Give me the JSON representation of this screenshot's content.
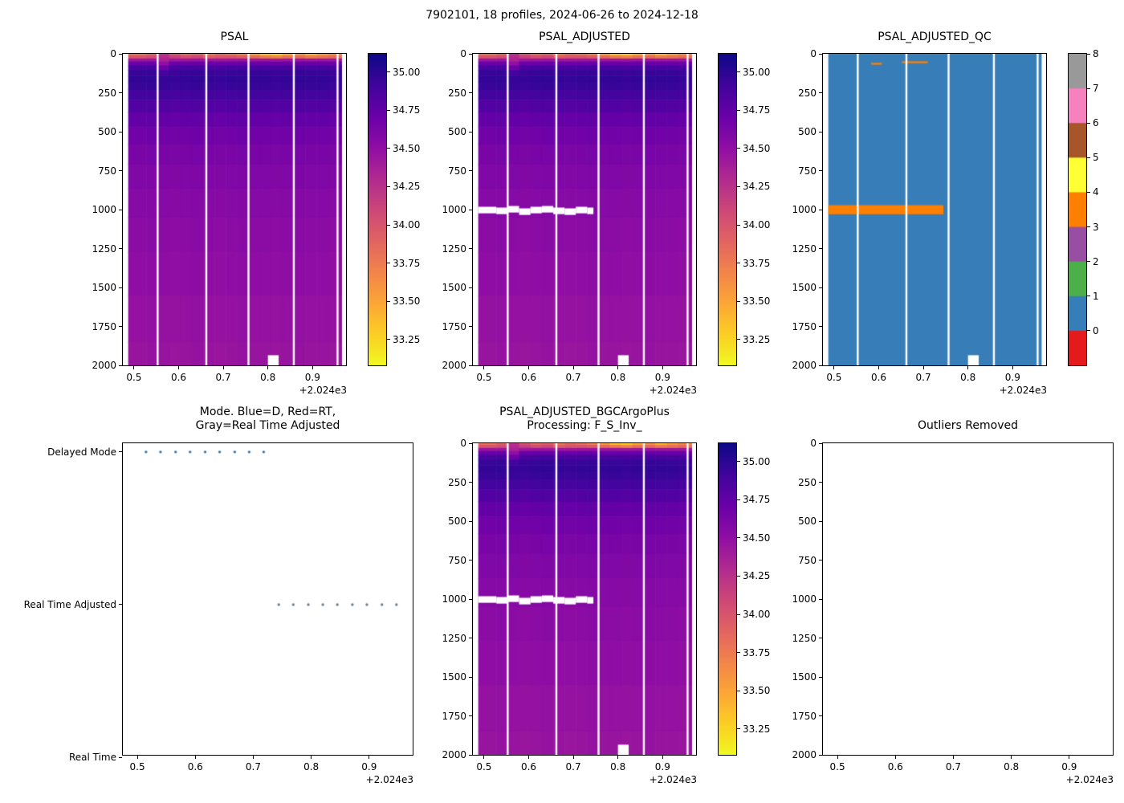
{
  "figure_title": "7902101, 18 profiles, 2024-06-26 to 2024-12-18",
  "axis": {
    "x_tick_labels": [
      "0.5",
      "0.6",
      "0.7",
      "0.8",
      "0.9"
    ],
    "x_tick_values": [
      0.5,
      0.6,
      0.7,
      0.8,
      0.9
    ],
    "x_min": 0.475,
    "x_max": 0.975,
    "x_offset_text": "+2.024e3",
    "y_tick_labels": [
      "0",
      "250",
      "500",
      "750",
      "1000",
      "1250",
      "1500",
      "1750",
      "2000"
    ],
    "y_tick_values": [
      0,
      250,
      500,
      750,
      1000,
      1250,
      1500,
      1750,
      2000
    ],
    "y_min": 0,
    "y_max": 2000
  },
  "salinity_colorbar": {
    "tick_labels": [
      "35.00",
      "34.75",
      "34.50",
      "34.25",
      "34.00",
      "33.75",
      "33.50",
      "33.25"
    ],
    "tick_values": [
      35.0,
      34.75,
      34.5,
      34.25,
      34.0,
      33.75,
      33.5,
      33.25
    ],
    "vmin": 33.08,
    "vmax": 35.12,
    "colormap": "plasma_r"
  },
  "qc_colorbar": {
    "tick_labels": [
      "0",
      "1",
      "2",
      "3",
      "4",
      "5",
      "6",
      "7",
      "8"
    ],
    "colors": [
      "#e41a1c",
      "#377eb8",
      "#4daf4a",
      "#984ea3",
      "#ff7f00",
      "#ffff33",
      "#a65628",
      "#f781bf",
      "#999999"
    ]
  },
  "chart_data": [
    {
      "id": "psal",
      "type": "heatmap",
      "title": "PSAL",
      "x_offset": 2024,
      "x": [
        0.515,
        0.54,
        0.566,
        0.591,
        0.617,
        0.642,
        0.668,
        0.693,
        0.718,
        0.744,
        0.769,
        0.795,
        0.82,
        0.845,
        0.871,
        0.896,
        0.922,
        0.947
      ],
      "x_extent": [
        0.487,
        0.965
      ],
      "gap_x": [
        0.553,
        0.662,
        0.7565,
        0.858,
        0.956
      ],
      "missing_patch": {
        "x0": 0.8,
        "x1": 0.824,
        "p0": 1935,
        "p1": 2000
      },
      "depths": [
        0,
        20,
        40,
        60,
        90,
        120,
        160,
        200,
        260,
        330,
        420,
        520,
        640,
        780,
        950,
        1150,
        1400,
        1700,
        2000
      ],
      "vmin": 33.08,
      "vmax": 35.12,
      "values": [
        [
          33.8,
          34.0,
          34.45,
          34.72,
          34.88,
          34.95,
          34.97,
          34.95,
          34.9,
          34.83,
          34.74,
          34.68,
          34.63,
          34.59,
          34.56,
          34.53,
          34.51,
          34.48,
          34.46
        ],
        [
          33.9,
          34.05,
          34.46,
          34.73,
          34.89,
          34.96,
          34.98,
          34.96,
          34.91,
          34.84,
          34.75,
          34.69,
          34.64,
          34.6,
          34.57,
          34.54,
          34.52,
          34.49,
          34.47
        ],
        [
          34.25,
          34.3,
          34.35,
          34.5,
          34.7,
          34.9,
          34.96,
          34.95,
          34.9,
          34.83,
          34.74,
          34.68,
          34.63,
          34.59,
          34.56,
          34.53,
          34.51,
          34.48,
          34.46
        ],
        [
          34.0,
          34.15,
          34.44,
          34.71,
          34.87,
          34.94,
          34.96,
          34.94,
          34.89,
          34.82,
          34.73,
          34.67,
          34.62,
          34.58,
          34.55,
          34.52,
          34.5,
          34.47,
          34.45
        ],
        [
          33.85,
          34.05,
          34.45,
          34.72,
          34.88,
          34.95,
          34.97,
          34.95,
          34.9,
          34.83,
          34.74,
          34.68,
          34.63,
          34.59,
          34.56,
          34.53,
          34.51,
          34.48,
          34.46
        ],
        [
          33.9,
          34.1,
          34.46,
          34.73,
          34.89,
          34.96,
          34.98,
          34.96,
          34.91,
          34.84,
          34.75,
          34.69,
          34.64,
          34.6,
          34.57,
          34.54,
          34.52,
          34.49,
          34.47
        ],
        [
          33.75,
          33.95,
          34.45,
          34.72,
          34.88,
          34.95,
          34.97,
          34.95,
          34.9,
          34.83,
          34.74,
          34.68,
          34.63,
          34.59,
          34.56,
          34.53,
          34.51,
          34.48,
          34.46
        ],
        [
          33.85,
          34.0,
          34.44,
          34.71,
          34.87,
          34.94,
          34.96,
          34.94,
          34.89,
          34.82,
          34.73,
          34.67,
          34.62,
          34.58,
          34.55,
          34.52,
          34.5,
          34.47,
          34.45
        ],
        [
          33.8,
          34.0,
          34.45,
          34.72,
          34.88,
          34.95,
          34.97,
          34.95,
          34.9,
          34.83,
          34.74,
          34.68,
          34.63,
          34.59,
          34.56,
          34.53,
          34.51,
          34.48,
          34.46
        ],
        [
          33.7,
          33.95,
          34.46,
          34.73,
          34.89,
          34.96,
          34.98,
          34.96,
          34.91,
          34.84,
          34.75,
          34.69,
          34.64,
          34.6,
          34.57,
          34.54,
          34.52,
          34.49,
          34.47
        ],
        [
          33.55,
          33.85,
          34.45,
          34.72,
          34.88,
          34.95,
          34.97,
          34.95,
          34.9,
          34.83,
          34.74,
          34.68,
          34.63,
          34.59,
          34.56,
          34.53,
          34.51,
          34.48,
          34.46
        ],
        [
          33.35,
          33.75,
          34.45,
          34.72,
          34.88,
          34.95,
          34.97,
          34.95,
          34.9,
          34.83,
          34.74,
          34.68,
          34.63,
          34.59,
          34.56,
          34.53,
          34.51,
          34.48,
          34.46
        ],
        [
          33.3,
          33.7,
          34.44,
          34.71,
          34.87,
          34.94,
          34.96,
          34.94,
          34.89,
          34.82,
          34.73,
          34.67,
          34.62,
          34.58,
          34.55,
          34.52,
          34.5,
          34.47,
          34.45
        ],
        [
          33.45,
          33.8,
          34.45,
          34.72,
          34.88,
          34.95,
          34.97,
          34.95,
          34.9,
          34.83,
          34.74,
          34.68,
          34.63,
          34.59,
          34.56,
          34.53,
          34.51,
          34.48,
          34.46
        ],
        [
          33.6,
          33.85,
          34.46,
          34.73,
          34.89,
          34.96,
          34.98,
          34.96,
          34.91,
          34.84,
          34.75,
          34.69,
          34.64,
          34.6,
          34.57,
          34.54,
          34.52,
          34.49,
          34.47
        ],
        [
          33.4,
          33.75,
          34.45,
          34.72,
          34.88,
          34.95,
          34.97,
          34.95,
          34.9,
          34.83,
          34.74,
          34.68,
          34.63,
          34.59,
          34.56,
          34.53,
          34.51,
          34.48,
          34.46
        ],
        [
          33.55,
          33.8,
          34.45,
          34.72,
          34.88,
          34.95,
          34.97,
          34.95,
          34.9,
          34.83,
          34.74,
          34.68,
          34.63,
          34.59,
          34.56,
          34.53,
          34.51,
          34.48,
          34.46
        ],
        [
          33.65,
          33.85,
          34.44,
          34.71,
          34.87,
          34.94,
          34.96,
          34.94,
          34.89,
          34.82,
          34.73,
          34.67,
          34.62,
          34.58,
          34.55,
          34.52,
          34.5,
          34.47,
          34.45
        ]
      ]
    },
    {
      "id": "psal_adjusted",
      "type": "heatmap",
      "title": "PSAL_ADJUSTED",
      "values_ref": "psal",
      "removed_band": {
        "x0": 0.487,
        "x1": 0.745,
        "p0": 982,
        "p1": 1024
      }
    },
    {
      "id": "psal_adjusted_qc",
      "type": "heatmap_discrete",
      "title": "PSAL_ADJUSTED_QC",
      "base_qc": 1,
      "x_extent": [
        0.487,
        0.965
      ],
      "gap_x": [
        0.553,
        0.662,
        0.7565,
        0.858,
        0.956
      ],
      "missing_patch": {
        "x0": 0.8,
        "x1": 0.824,
        "p0": 1935,
        "p1": 2000
      },
      "flags": [
        {
          "qc": 4,
          "x0": 0.487,
          "x1": 0.745,
          "p0": 972,
          "p1": 1030
        },
        {
          "qc": 4,
          "x0": 0.583,
          "x1": 0.607,
          "p0": 58,
          "p1": 70
        },
        {
          "qc": 4,
          "x0": 0.652,
          "x1": 0.71,
          "p0": 48,
          "p1": 60
        }
      ]
    },
    {
      "id": "mode",
      "type": "scatter",
      "title_line1": "Mode. Blue=D, Red=RT,",
      "title_line2": "Gray=Real Time Adjusted",
      "categories": [
        "Delayed Mode",
        "Real Time Adjusted",
        "Real Time"
      ],
      "series": [
        {
          "name": "Delayed Mode",
          "color": "#2e75b6",
          "x": [
            0.515,
            0.54,
            0.566,
            0.591,
            0.617,
            0.642,
            0.668,
            0.693,
            0.718
          ]
        },
        {
          "name": "Real Time Adjusted",
          "color": "#6e7f8d",
          "x": [
            0.744,
            0.769,
            0.795,
            0.82,
            0.845,
            0.871,
            0.896,
            0.922,
            0.947
          ]
        },
        {
          "name": "Real Time",
          "color": "#d62728",
          "x": []
        }
      ]
    },
    {
      "id": "psal_adjusted_bgc",
      "type": "heatmap",
      "title_line1": "PSAL_ADJUSTED_BGCArgoPlus",
      "title_line2": "Processing: F_S_Inv_",
      "values_ref": "psal",
      "removed_band": {
        "x0": 0.487,
        "x1": 0.745,
        "p0": 982,
        "p1": 1024
      }
    },
    {
      "id": "outliers",
      "type": "empty",
      "title": "Outliers Removed"
    }
  ]
}
